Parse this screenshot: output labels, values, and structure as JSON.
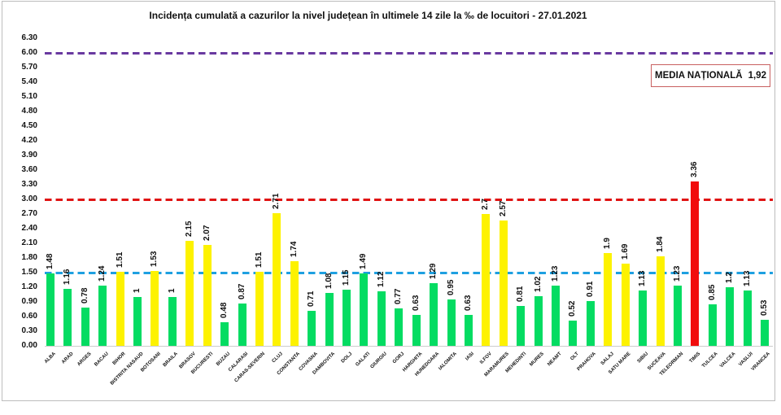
{
  "title": "Incidența cumulată a cazurilor la nivel județean în ultimele 14 zile la ‰ de locuitori - 27.01.2021",
  "national_average_box": {
    "label": "MEDIA NAȚIONALĂ",
    "value": "1,92"
  },
  "chart_data": {
    "type": "bar",
    "title": "Incidența cumulată a cazurilor la nivel județean în ultimele 14 zile la ‰ de locuitori - 27.01.2021",
    "categories": [
      "ALBA",
      "ARAD",
      "ARGES",
      "BACAU",
      "BIHOR",
      "BISTRITA NASAUD",
      "BOTOSANI",
      "BRAILA",
      "BRASOV",
      "BUCURESTI",
      "BUZAU",
      "CALARASI",
      "CARAS-SEVERIN",
      "CLUJ",
      "CONSTANTA",
      "COVASNA",
      "DAMBOVITA",
      "DOLJ",
      "GALATI",
      "GIURGIU",
      "GORJ",
      "HARGHITA",
      "HUNEDOARA",
      "IALOMITA",
      "IASI",
      "ILFOV",
      "MARAMURES",
      "MEHEDINTI",
      "MURES",
      "NEAMT",
      "OLT",
      "PRAHOVA",
      "SALAJ",
      "SATU MARE",
      "SIBIU",
      "SUCEAVA",
      "TELEORMAN",
      "TIMIS",
      "TULCEA",
      "VALCEA",
      "VASLUI",
      "VRANCEA"
    ],
    "values": [
      1.48,
      1.16,
      0.78,
      1.24,
      1.51,
      1,
      1.53,
      1,
      2.15,
      2.07,
      0.48,
      0.87,
      1.51,
      2.71,
      1.74,
      0.71,
      1.08,
      1.15,
      1.49,
      1.12,
      0.77,
      0.63,
      1.29,
      0.95,
      0.63,
      2.7,
      2.57,
      0.81,
      1.02,
      1.23,
      0.52,
      0.91,
      1.9,
      1.69,
      1.13,
      1.84,
      1.23,
      3.36,
      0.85,
      1.2,
      1.13,
      0.53
    ],
    "bar_colors": [
      "green",
      "green",
      "green",
      "green",
      "yellow",
      "green",
      "yellow",
      "green",
      "yellow",
      "yellow",
      "green",
      "green",
      "yellow",
      "yellow",
      "yellow",
      "green",
      "green",
      "green",
      "green",
      "green",
      "green",
      "green",
      "green",
      "green",
      "green",
      "yellow",
      "yellow",
      "green",
      "green",
      "green",
      "green",
      "green",
      "yellow",
      "yellow",
      "green",
      "yellow",
      "green",
      "red",
      "green",
      "green",
      "green",
      "green"
    ],
    "color_map": {
      "green": "#04dc62",
      "yellow": "#fdf200",
      "red": "#f10d0d"
    },
    "ylabel": "",
    "xlabel": "",
    "ylim": [
      0,
      6.3
    ],
    "ytick_step": 0.3,
    "grid": "off",
    "reference_lines": [
      {
        "value": 6.0,
        "color": "#6939a0"
      },
      {
        "value": 3.0,
        "color": "#e01414"
      },
      {
        "value": 1.5,
        "color": "#1ea0e0"
      }
    ]
  }
}
